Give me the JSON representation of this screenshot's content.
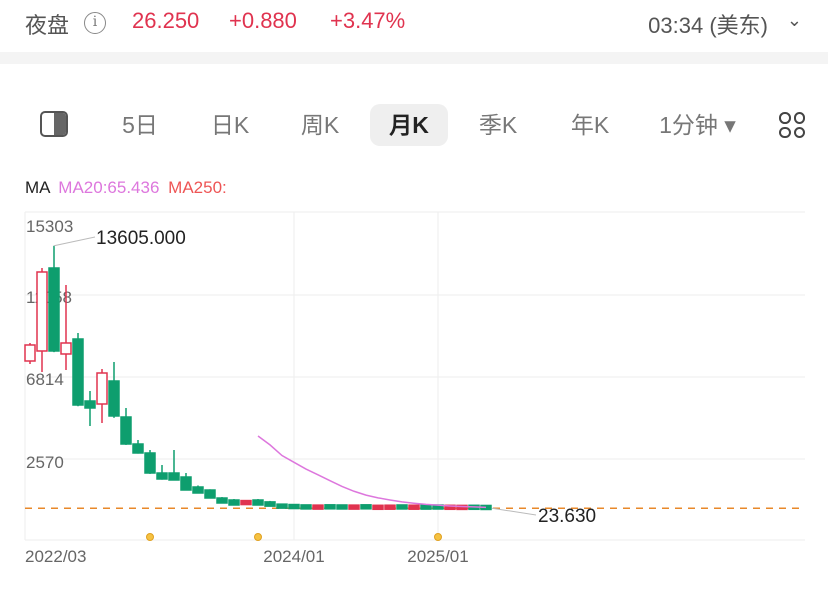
{
  "header": {
    "session": "夜盘",
    "info_icon": "i",
    "price": "26.250",
    "change": "+0.880",
    "change_pct": "+3.47%",
    "time": "03:34 (美东)",
    "chevron": "⌄"
  },
  "tabs": [
    {
      "label": "5日"
    },
    {
      "label": "日K"
    },
    {
      "label": "周K"
    },
    {
      "label": "月K",
      "active": true
    },
    {
      "label": "季K"
    },
    {
      "label": "年K"
    },
    {
      "label": "1分钟 ▾"
    }
  ],
  "ma": {
    "label": "MA",
    "ma20": "MA20:65.436",
    "ma250": "MA250:"
  },
  "colors": {
    "up": "#e0334f",
    "down": "#0e9e6e",
    "ma20": "#dd77dd",
    "ma250": "#ee5555",
    "price_line": "#e8882a"
  },
  "chart_data": {
    "type": "candlestick",
    "yticks": [
      "15303",
      "11058",
      "6814",
      "2570"
    ],
    "ytick_values": [
      15303,
      11058,
      6814,
      2570
    ],
    "xticks": [
      {
        "label": "2022/03",
        "index": 0
      },
      {
        "label": "2024/01",
        "index": 22
      },
      {
        "label": "2025/01",
        "index": 34
      }
    ],
    "max_label": "13605.000",
    "last_label": "23.630",
    "last_price": 23.63,
    "event_markers": [
      10,
      19,
      34
    ],
    "candles": [
      [
        7642,
        8574,
        7487,
        8471
      ],
      [
        8160,
        12456,
        7073,
        12249
      ],
      [
        12456,
        13605,
        8100,
        8160
      ],
      [
        8005,
        11576,
        7177,
        8574
      ],
      [
        8781,
        9092,
        5300,
        5365
      ],
      [
        5572,
        6090,
        4278,
        5210
      ],
      [
        5417,
        7228,
        4433,
        7021
      ],
      [
        6607,
        7591,
        4700,
        4796
      ],
      [
        4744,
        5210,
        3300,
        3346
      ],
      [
        3346,
        3553,
        2850,
        2881
      ],
      [
        2881,
        3036,
        1800,
        1845
      ],
      [
        1845,
        2259,
        1500,
        1535
      ],
      [
        1845,
        3036,
        1480,
        1483
      ],
      [
        1638,
        1845,
        950,
        965
      ],
      [
        1121,
        1200,
        800,
        810
      ],
      [
        965,
        1000,
        540,
        551
      ],
      [
        551,
        600,
        280,
        293
      ],
      [
        448,
        500,
        180,
        189
      ],
      [
        290,
        350,
        240,
        340
      ],
      [
        448,
        500,
        180,
        189
      ],
      [
        350,
        400,
        120,
        130
      ],
      [
        200,
        230,
        50,
        60
      ],
      [
        180,
        200,
        30,
        40
      ],
      [
        150,
        170,
        25,
        30
      ],
      [
        40,
        130,
        30,
        120
      ],
      [
        160,
        180,
        25,
        30
      ],
      [
        150,
        170,
        20,
        25
      ],
      [
        40,
        130,
        30,
        120
      ],
      [
        170,
        190,
        15,
        20
      ],
      [
        30,
        120,
        25,
        110
      ],
      [
        30,
        130,
        25,
        120
      ],
      [
        150,
        170,
        20,
        25
      ],
      [
        40,
        120,
        30,
        110
      ],
      [
        140,
        160,
        15,
        20
      ],
      [
        150,
        160,
        15,
        20
      ],
      [
        30,
        120,
        25,
        110
      ],
      [
        30,
        110,
        25,
        100
      ],
      [
        120,
        130,
        15,
        20
      ],
      [
        100,
        110,
        20,
        23.63
      ]
    ],
    "ma20": {
      "start_index": 19,
      "values": [
        3760,
        3300,
        2750,
        2400,
        2050,
        1750,
        1450,
        1150,
        900,
        700,
        560,
        450,
        350,
        280,
        220,
        180,
        140,
        110,
        90,
        65.436
      ]
    }
  }
}
